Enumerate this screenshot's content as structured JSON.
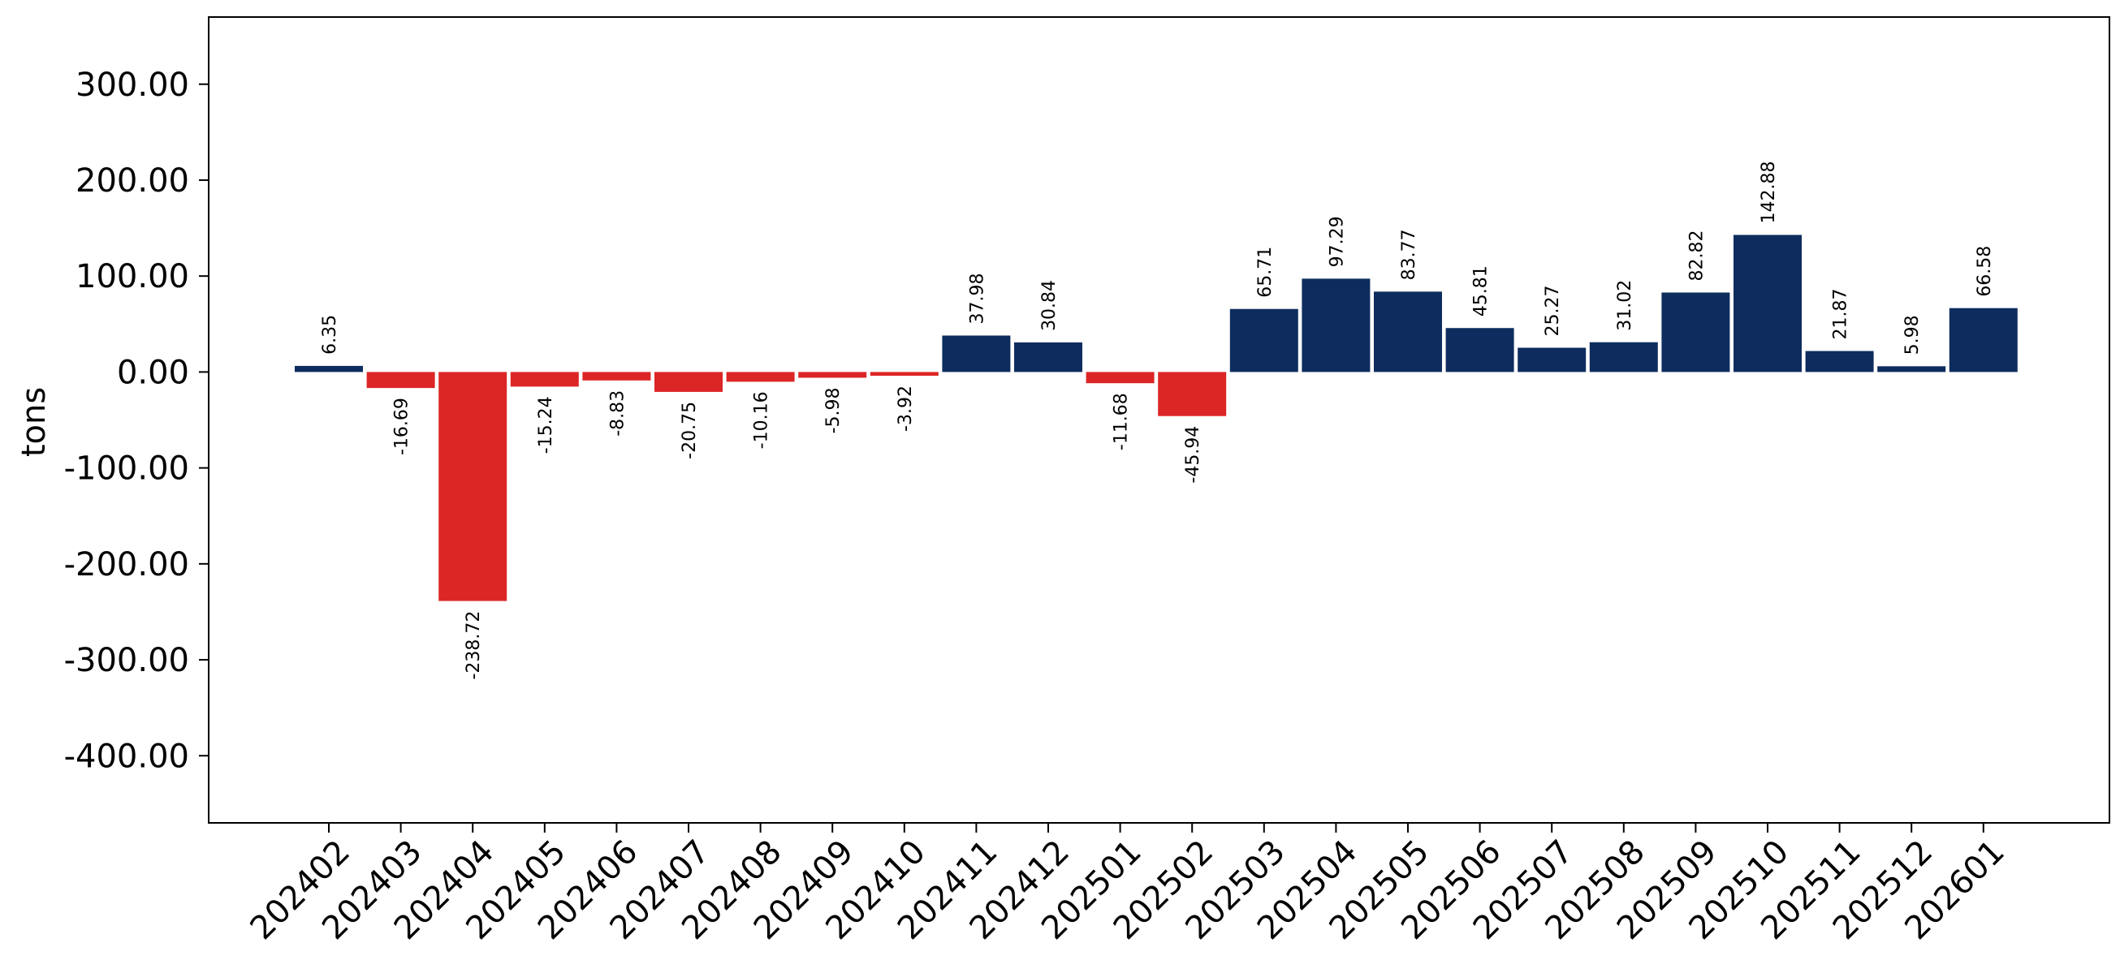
{
  "chart_data": {
    "type": "bar",
    "title": "",
    "xlabel": "",
    "ylabel": "tons",
    "ylim": [
      -470,
      370
    ],
    "yticks": [
      300,
      200,
      100,
      0,
      -100,
      -200,
      -300,
      -400
    ],
    "ytick_labels": [
      "300.00",
      "200.00",
      "100.00",
      "0.00",
      "-100.00",
      "-200.00",
      "-300.00",
      "-400.00"
    ],
    "grid": false,
    "legend": "none",
    "positive_color": "#0e2d5e",
    "negative_color": "#dc2626",
    "categories": [
      "202402",
      "202403",
      "202404",
      "202405",
      "202406",
      "202407",
      "202408",
      "202409",
      "202410",
      "202411",
      "202412",
      "202501",
      "202502",
      "202503",
      "202504",
      "202505",
      "202506",
      "202507",
      "202508",
      "202509",
      "202510",
      "202511",
      "202512",
      "202601"
    ],
    "values": [
      6.35,
      -16.69,
      -238.72,
      -15.24,
      -8.83,
      -20.75,
      -10.16,
      -5.98,
      -3.92,
      37.98,
      30.84,
      -11.68,
      -45.94,
      65.71,
      97.29,
      83.77,
      45.81,
      25.27,
      31.02,
      82.82,
      142.88,
      21.87,
      5.98,
      66.58
    ],
    "value_labels": [
      "6.35",
      "-16.69",
      "-238.72",
      "-15.24",
      "-8.83",
      "-20.75",
      "-10.16",
      "-5.98",
      "-3.92",
      "37.98",
      "30.84",
      "-11.68",
      "-45.94",
      "65.71",
      "97.29",
      "83.77",
      "45.81",
      "25.27",
      "31.02",
      "82.82",
      "142.88",
      "21.87",
      "5.98",
      "66.58"
    ]
  }
}
